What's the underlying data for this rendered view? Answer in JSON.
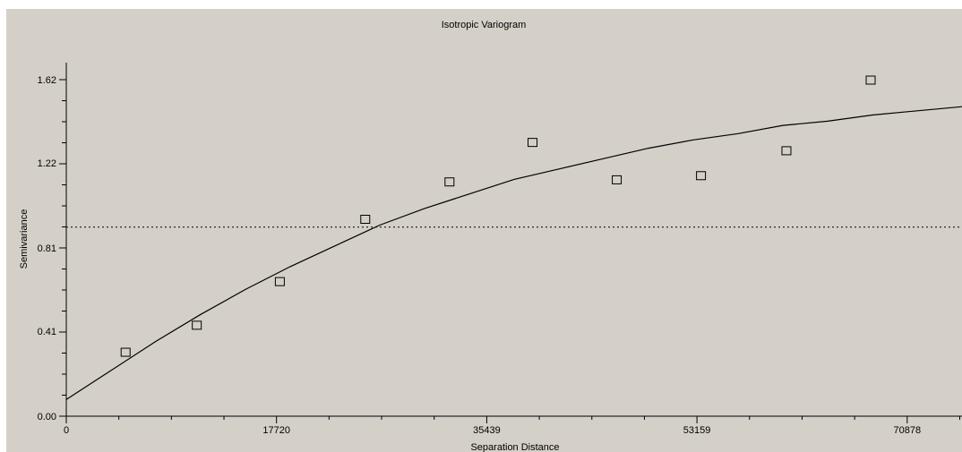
{
  "chart_data": {
    "type": "scatter",
    "title": "Isotropic Variogram",
    "xlabel": "Separation Distance",
    "ylabel": "Semivariance",
    "xlim": [
      0,
      75500
    ],
    "ylim": [
      0,
      1.62
    ],
    "x_ticks": [
      0,
      17720,
      35439,
      53159,
      70878
    ],
    "y_ticks": [
      0.0,
      0.41,
      0.81,
      1.22,
      1.62
    ],
    "x_tick_labels": [
      "0",
      "17720",
      "35439",
      "53159",
      "70878"
    ],
    "y_tick_labels": [
      "0.00",
      "0.41",
      "0.81",
      "1.22",
      "1.62"
    ],
    "points": [
      {
        "x": 5000,
        "y": 0.31
      },
      {
        "x": 11000,
        "y": 0.44
      },
      {
        "x": 18000,
        "y": 0.65
      },
      {
        "x": 25200,
        "y": 0.95
      },
      {
        "x": 32300,
        "y": 1.13
      },
      {
        "x": 39300,
        "y": 1.32
      },
      {
        "x": 46400,
        "y": 1.14
      },
      {
        "x": 53500,
        "y": 1.16
      },
      {
        "x": 60700,
        "y": 1.28
      },
      {
        "x": 67800,
        "y": 1.62
      }
    ],
    "model_curve": [
      {
        "x": 0,
        "y": 0.08
      },
      {
        "x": 3775,
        "y": 0.22
      },
      {
        "x": 7550,
        "y": 0.36
      },
      {
        "x": 11325,
        "y": 0.49
      },
      {
        "x": 15100,
        "y": 0.61
      },
      {
        "x": 18875,
        "y": 0.72
      },
      {
        "x": 22650,
        "y": 0.82
      },
      {
        "x": 26425,
        "y": 0.92
      },
      {
        "x": 30200,
        "y": 1.0
      },
      {
        "x": 33975,
        "y": 1.07
      },
      {
        "x": 37750,
        "y": 1.14
      },
      {
        "x": 41525,
        "y": 1.19
      },
      {
        "x": 45300,
        "y": 1.24
      },
      {
        "x": 49075,
        "y": 1.29
      },
      {
        "x": 52850,
        "y": 1.33
      },
      {
        "x": 56625,
        "y": 1.36
      },
      {
        "x": 60400,
        "y": 1.4
      },
      {
        "x": 64175,
        "y": 1.42
      },
      {
        "x": 67950,
        "y": 1.45
      },
      {
        "x": 71725,
        "y": 1.47
      },
      {
        "x": 75500,
        "y": 1.49
      }
    ],
    "sill": 0.91,
    "grid": false,
    "colors": {
      "background": "#d4d0c8",
      "marks": "#000000"
    }
  }
}
